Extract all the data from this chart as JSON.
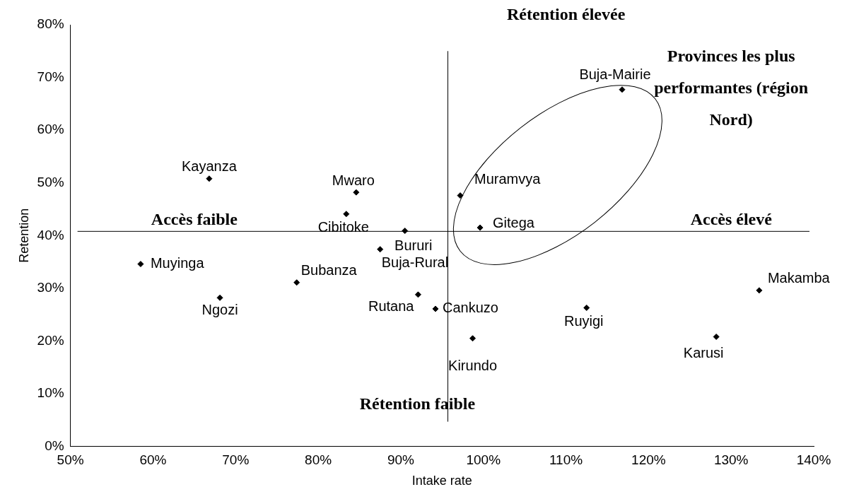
{
  "chart_data": {
    "type": "scatter",
    "xlabel": "Intake rate",
    "ylabel": "Retention",
    "marker": "diamond",
    "legend": false,
    "grid": false,
    "xlim": [
      50,
      140
    ],
    "xticks": [
      {
        "value": 50,
        "label": "50%"
      },
      {
        "value": 60,
        "label": "60%"
      },
      {
        "value": 70,
        "label": "70%"
      },
      {
        "value": 80,
        "label": "80%"
      },
      {
        "value": 90,
        "label": "90%"
      },
      {
        "value": 100,
        "label": "100%"
      },
      {
        "value": 110,
        "label": "110%"
      },
      {
        "value": 120,
        "label": "120%"
      },
      {
        "value": 130,
        "label": "130%"
      },
      {
        "value": 140,
        "label": "140%"
      }
    ],
    "ylim": [
      0,
      80
    ],
    "yticks": [
      {
        "value": 0,
        "label": "0%"
      },
      {
        "value": 10,
        "label": "10%"
      },
      {
        "value": 20,
        "label": "20%"
      },
      {
        "value": 30,
        "label": "30%"
      },
      {
        "value": 40,
        "label": "40%"
      },
      {
        "value": 50,
        "label": "50%"
      },
      {
        "value": 60,
        "label": "60%"
      },
      {
        "value": 70,
        "label": "70%"
      },
      {
        "value": 80,
        "label": "80%"
      }
    ],
    "series": [
      {
        "name": "Kayanza",
        "color": "#000000",
        "x": [
          66.8
        ],
        "values": [
          50.8
        ]
      },
      {
        "name": "Muyinga",
        "color": "#000000",
        "x": [
          58.5
        ],
        "values": [
          34.6
        ]
      },
      {
        "name": "Ngozi",
        "color": "#000000",
        "x": [
          68.1
        ],
        "values": [
          28.2
        ]
      },
      {
        "name": "Bubanza",
        "color": "#000000",
        "x": [
          77.4
        ],
        "values": [
          31.1
        ]
      },
      {
        "name": "Cibitoke",
        "color": "#000000",
        "x": [
          83.4
        ],
        "values": [
          44.1
        ]
      },
      {
        "name": "Mwaro",
        "color": "#000000",
        "x": [
          84.6
        ],
        "values": [
          48.2
        ]
      },
      {
        "name": "Buja-Rural",
        "color": "#000000",
        "x": [
          87.5
        ],
        "values": [
          37.4
        ]
      },
      {
        "name": "Bururi",
        "color": "#000000",
        "x": [
          90.5
        ],
        "values": [
          40.9
        ]
      },
      {
        "name": "Rutana",
        "color": "#000000",
        "x": [
          92.1
        ],
        "values": [
          28.8
        ]
      },
      {
        "name": "Cankuzo",
        "color": "#000000",
        "x": [
          94.2
        ],
        "values": [
          26.1
        ]
      },
      {
        "name": "Kirundo",
        "color": "#000000",
        "x": [
          98.7
        ],
        "values": [
          20.5
        ]
      },
      {
        "name": "Muramvya",
        "color": "#000000",
        "x": [
          97.2
        ],
        "values": [
          47.6
        ]
      },
      {
        "name": "Gitega",
        "color": "#000000",
        "x": [
          99.6
        ],
        "values": [
          41.5
        ]
      },
      {
        "name": "Buja-Mairie",
        "color": "#000000",
        "x": [
          116.8
        ],
        "values": [
          67.7
        ]
      },
      {
        "name": "Ruyigi",
        "color": "#000000",
        "x": [
          112.5
        ],
        "values": [
          26.3
        ]
      },
      {
        "name": "Karusi",
        "color": "#000000",
        "x": [
          128.2
        ],
        "values": [
          20.8
        ]
      },
      {
        "name": "Makamba",
        "color": "#000000",
        "x": [
          133.4
        ],
        "values": [
          29.6
        ]
      }
    ],
    "ref_lines": [
      {
        "axis": "y",
        "value": 40.8,
        "color": "#000000"
      },
      {
        "axis": "x",
        "value": 95.7,
        "color": "#000000"
      }
    ],
    "annotations": [
      "Rétention élevée",
      "Rétention faible",
      "Accès faible",
      "Accès élevé",
      "Provinces les plus performantes (région Nord)"
    ]
  }
}
